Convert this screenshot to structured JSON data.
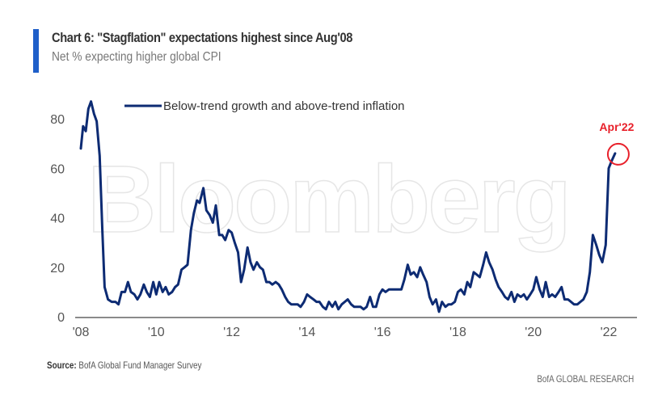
{
  "header": {
    "title": "Chart 6: \"Stagflation\" expectations highest since Aug'08",
    "subtitle": "Net % expecting higher global CPI",
    "accent_color": "#1f5fc9"
  },
  "footer": {
    "source_label": "Source:",
    "source_text": "BofA Global Fund Manager Survey",
    "brand": "BofA GLOBAL RESEARCH"
  },
  "watermark": "Bloomberg",
  "chart_data": {
    "type": "line",
    "title": "Chart 6: \"Stagflation\" expectations highest since Aug'08",
    "subtitle": "Net % expecting higher global CPI",
    "xlabel": "",
    "ylabel": "",
    "xlim": [
      2008.0,
      2023.2
    ],
    "ylim": [
      0,
      90
    ],
    "grid": false,
    "legend_position": "top-center",
    "x_ticks": [
      {
        "value": 2008,
        "label": "'08"
      },
      {
        "value": 2010,
        "label": "'10"
      },
      {
        "value": 2012,
        "label": "'12"
      },
      {
        "value": 2014,
        "label": "'14"
      },
      {
        "value": 2016,
        "label": "'16"
      },
      {
        "value": 2018,
        "label": "'18"
      },
      {
        "value": 2020,
        "label": "'20"
      },
      {
        "value": 2022,
        "label": "'22"
      }
    ],
    "y_ticks": [
      {
        "value": 0,
        "label": "0"
      },
      {
        "value": 20,
        "label": "20"
      },
      {
        "value": 40,
        "label": "40"
      },
      {
        "value": 60,
        "label": "60"
      },
      {
        "value": 80,
        "label": "80"
      }
    ],
    "series": [
      {
        "name": "Below-trend growth and above-trend inflation",
        "color": "#0d2b73",
        "points": [
          [
            2008.0,
            68
          ],
          [
            2008.06,
            77
          ],
          [
            2008.13,
            75
          ],
          [
            2008.2,
            84
          ],
          [
            2008.27,
            87
          ],
          [
            2008.35,
            82
          ],
          [
            2008.42,
            79
          ],
          [
            2008.5,
            65
          ],
          [
            2008.57,
            35
          ],
          [
            2008.63,
            12
          ],
          [
            2008.72,
            7
          ],
          [
            2008.82,
            6
          ],
          [
            2008.92,
            6
          ],
          [
            2009.0,
            5
          ],
          [
            2009.08,
            10
          ],
          [
            2009.17,
            10
          ],
          [
            2009.25,
            14
          ],
          [
            2009.33,
            10
          ],
          [
            2009.42,
            9
          ],
          [
            2009.5,
            7
          ],
          [
            2009.58,
            9
          ],
          [
            2009.67,
            13
          ],
          [
            2009.75,
            10
          ],
          [
            2009.83,
            8
          ],
          [
            2009.92,
            14
          ],
          [
            2010.0,
            9
          ],
          [
            2010.08,
            14
          ],
          [
            2010.17,
            10
          ],
          [
            2010.25,
            12
          ],
          [
            2010.33,
            9
          ],
          [
            2010.42,
            10
          ],
          [
            2010.5,
            12
          ],
          [
            2010.58,
            13
          ],
          [
            2010.67,
            19
          ],
          [
            2010.75,
            20
          ],
          [
            2010.83,
            21
          ],
          [
            2010.92,
            35
          ],
          [
            2011.0,
            42
          ],
          [
            2011.08,
            47
          ],
          [
            2011.15,
            46
          ],
          [
            2011.25,
            52
          ],
          [
            2011.33,
            43
          ],
          [
            2011.42,
            41
          ],
          [
            2011.5,
            38
          ],
          [
            2011.58,
            45
          ],
          [
            2011.67,
            33
          ],
          [
            2011.75,
            33
          ],
          [
            2011.83,
            31
          ],
          [
            2011.92,
            35
          ],
          [
            2012.0,
            34
          ],
          [
            2012.08,
            30
          ],
          [
            2012.17,
            26
          ],
          [
            2012.25,
            14
          ],
          [
            2012.33,
            19
          ],
          [
            2012.42,
            28
          ],
          [
            2012.5,
            22
          ],
          [
            2012.58,
            19
          ],
          [
            2012.67,
            22
          ],
          [
            2012.75,
            20
          ],
          [
            2012.83,
            19
          ],
          [
            2012.92,
            14
          ],
          [
            2013.0,
            14
          ],
          [
            2013.08,
            13
          ],
          [
            2013.17,
            14
          ],
          [
            2013.25,
            13
          ],
          [
            2013.33,
            11
          ],
          [
            2013.42,
            8
          ],
          [
            2013.5,
            6
          ],
          [
            2013.58,
            5
          ],
          [
            2013.67,
            5
          ],
          [
            2013.75,
            5
          ],
          [
            2013.83,
            4
          ],
          [
            2013.92,
            6
          ],
          [
            2014.0,
            9
          ],
          [
            2014.08,
            8
          ],
          [
            2014.17,
            7
          ],
          [
            2014.25,
            6
          ],
          [
            2014.33,
            6
          ],
          [
            2014.42,
            4
          ],
          [
            2014.5,
            3
          ],
          [
            2014.58,
            6
          ],
          [
            2014.67,
            4
          ],
          [
            2014.75,
            6
          ],
          [
            2014.83,
            3
          ],
          [
            2014.92,
            5
          ],
          [
            2015.0,
            6
          ],
          [
            2015.08,
            7
          ],
          [
            2015.17,
            5
          ],
          [
            2015.25,
            4
          ],
          [
            2015.33,
            4
          ],
          [
            2015.42,
            4
          ],
          [
            2015.5,
            3
          ],
          [
            2015.58,
            4
          ],
          [
            2015.67,
            8
          ],
          [
            2015.75,
            4
          ],
          [
            2015.83,
            4
          ],
          [
            2015.92,
            9
          ],
          [
            2016.0,
            11
          ],
          [
            2016.08,
            10
          ],
          [
            2016.17,
            11
          ],
          [
            2016.33,
            11
          ],
          [
            2016.5,
            11
          ],
          [
            2016.58,
            15
          ],
          [
            2016.67,
            21
          ],
          [
            2016.75,
            17
          ],
          [
            2016.83,
            18
          ],
          [
            2016.92,
            16
          ],
          [
            2017.0,
            20
          ],
          [
            2017.08,
            17
          ],
          [
            2017.17,
            14
          ],
          [
            2017.25,
            8
          ],
          [
            2017.33,
            5
          ],
          [
            2017.42,
            7
          ],
          [
            2017.5,
            2
          ],
          [
            2017.58,
            6
          ],
          [
            2017.67,
            4
          ],
          [
            2017.75,
            5
          ],
          [
            2017.83,
            5
          ],
          [
            2017.92,
            6
          ],
          [
            2018.0,
            10
          ],
          [
            2018.08,
            11
          ],
          [
            2018.17,
            9
          ],
          [
            2018.25,
            14
          ],
          [
            2018.33,
            12
          ],
          [
            2018.42,
            18
          ],
          [
            2018.5,
            17
          ],
          [
            2018.58,
            16
          ],
          [
            2018.67,
            21
          ],
          [
            2018.75,
            26
          ],
          [
            2018.83,
            22
          ],
          [
            2018.92,
            19
          ],
          [
            2019.0,
            15
          ],
          [
            2019.08,
            12
          ],
          [
            2019.17,
            10
          ],
          [
            2019.25,
            8
          ],
          [
            2019.33,
            7
          ],
          [
            2019.42,
            10
          ],
          [
            2019.5,
            6
          ],
          [
            2019.58,
            9
          ],
          [
            2019.67,
            8
          ],
          [
            2019.75,
            9
          ],
          [
            2019.83,
            7
          ],
          [
            2019.92,
            9
          ],
          [
            2020.0,
            11
          ],
          [
            2020.08,
            16
          ],
          [
            2020.17,
            11
          ],
          [
            2020.25,
            8
          ],
          [
            2020.33,
            14
          ],
          [
            2020.42,
            8
          ],
          [
            2020.5,
            9
          ],
          [
            2020.58,
            8
          ],
          [
            2020.67,
            10
          ],
          [
            2020.75,
            12
          ],
          [
            2020.83,
            7
          ],
          [
            2020.92,
            7
          ],
          [
            2021.0,
            6
          ],
          [
            2021.08,
            5
          ],
          [
            2021.17,
            5
          ],
          [
            2021.25,
            6
          ],
          [
            2021.33,
            7
          ],
          [
            2021.42,
            10
          ],
          [
            2021.5,
            18
          ],
          [
            2021.58,
            33
          ],
          [
            2021.67,
            29
          ],
          [
            2021.75,
            25
          ],
          [
            2021.83,
            22
          ],
          [
            2021.92,
            29
          ],
          [
            2022.0,
            60
          ],
          [
            2022.08,
            63
          ],
          [
            2022.17,
            66
          ]
        ]
      }
    ],
    "annotations": [
      {
        "type": "circle",
        "x": 2022.17,
        "y": 66,
        "text": "Apr'22",
        "color": "#e8202a"
      }
    ]
  }
}
